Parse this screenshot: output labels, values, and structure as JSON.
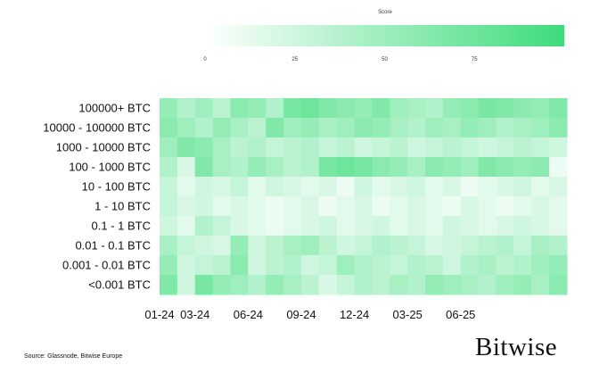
{
  "chart_data": {
    "type": "heatmap",
    "colorbar": {
      "title": "Score",
      "ticks": [
        0,
        25,
        50,
        75
      ],
      "range": [
        0,
        100
      ],
      "color_low": "#ffffff",
      "color_high": "#3ddc7c"
    },
    "rows": [
      "100000+ BTC",
      "10000 - 100000 BTC",
      "1000 - 10000 BTC",
      "100 - 1000 BTC",
      "10 - 100 BTC",
      "1 - 10 BTC",
      "0.1 - 1 BTC",
      "0.01 - 0.1 BTC",
      "0.001 - 0.01 BTC",
      "<0.001 BTC"
    ],
    "x_ticks": [
      "01-24",
      "03-24",
      "06-24",
      "09-24",
      "12-24",
      "03-25",
      "06-25"
    ],
    "x_tick_positions": [
      0,
      2,
      5,
      8,
      11,
      14,
      17
    ],
    "n_periods": 23,
    "values": [
      [
        55,
        40,
        50,
        35,
        60,
        55,
        40,
        70,
        75,
        65,
        60,
        55,
        65,
        50,
        45,
        40,
        55,
        60,
        70,
        65,
        60,
        55,
        65
      ],
      [
        60,
        50,
        40,
        55,
        45,
        35,
        65,
        50,
        55,
        45,
        50,
        60,
        55,
        45,
        40,
        50,
        45,
        55,
        50,
        40,
        45,
        50,
        60
      ],
      [
        50,
        65,
        60,
        45,
        35,
        40,
        30,
        35,
        40,
        30,
        35,
        25,
        30,
        35,
        25,
        30,
        35,
        30,
        25,
        30,
        35,
        30,
        25
      ],
      [
        40,
        20,
        65,
        45,
        40,
        55,
        45,
        35,
        40,
        70,
        75,
        70,
        60,
        55,
        45,
        60,
        55,
        50,
        65,
        60,
        55,
        60,
        10
      ],
      [
        30,
        15,
        25,
        20,
        30,
        15,
        25,
        20,
        15,
        20,
        10,
        25,
        15,
        20,
        25,
        15,
        20,
        10,
        15,
        20,
        25,
        15,
        20
      ],
      [
        30,
        20,
        25,
        15,
        20,
        15,
        10,
        15,
        20,
        10,
        15,
        20,
        10,
        15,
        20,
        15,
        10,
        20,
        15,
        10,
        15,
        20,
        15
      ],
      [
        25,
        15,
        40,
        30,
        20,
        15,
        10,
        15,
        20,
        25,
        15,
        20,
        25,
        15,
        20,
        15,
        25,
        20,
        15,
        20,
        25,
        20,
        15
      ],
      [
        45,
        30,
        25,
        20,
        55,
        25,
        35,
        45,
        50,
        35,
        25,
        30,
        40,
        35,
        30,
        20,
        25,
        30,
        35,
        40,
        30,
        45,
        40
      ],
      [
        55,
        25,
        30,
        35,
        60,
        25,
        35,
        40,
        25,
        30,
        50,
        40,
        35,
        30,
        40,
        35,
        25,
        40,
        45,
        35,
        40,
        50,
        55
      ],
      [
        65,
        25,
        70,
        55,
        50,
        40,
        55,
        45,
        35,
        20,
        30,
        40,
        35,
        45,
        40,
        55,
        50,
        45,
        40,
        50,
        55,
        45,
        60
      ]
    ]
  },
  "footer": {
    "source": "Source: Glassnode, Bitwise Europe",
    "brand": "Bitwise"
  }
}
